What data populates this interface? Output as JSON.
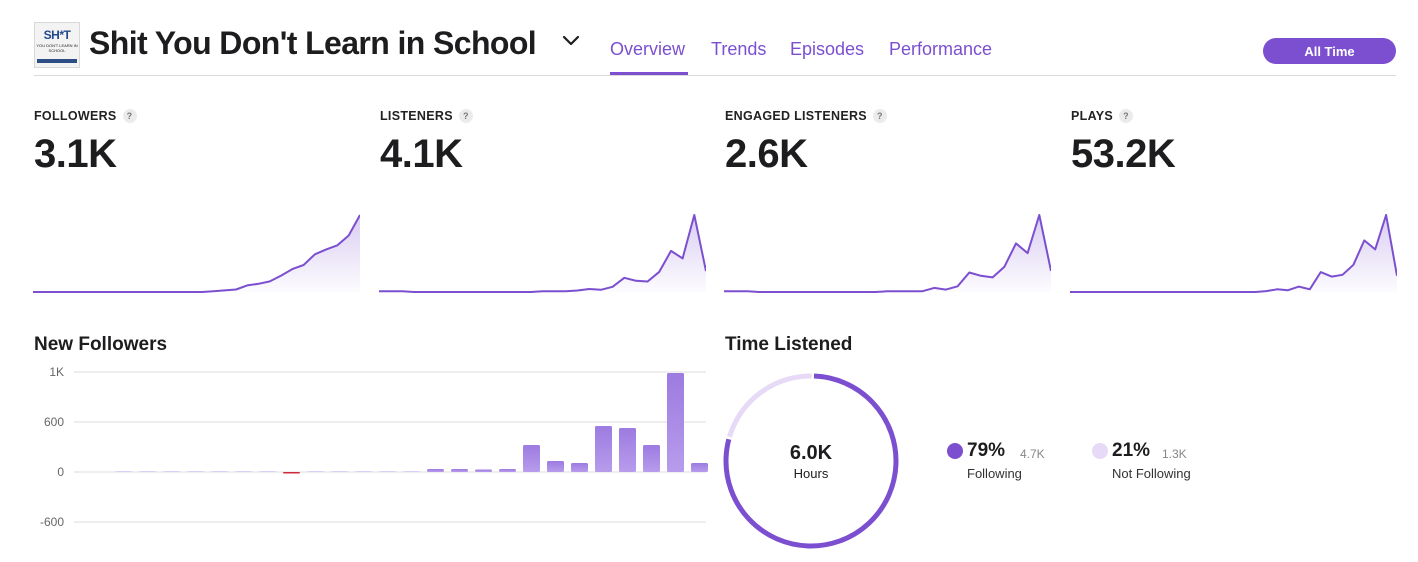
{
  "header": {
    "cover": {
      "line1": "SH*T",
      "line2": "YOU DON'T LEARN IN SCHOOL"
    },
    "title": "Shit You Don't Learn in School",
    "tabs": [
      {
        "label": "Overview",
        "active": true
      },
      {
        "label": "Trends",
        "active": false
      },
      {
        "label": "Episodes",
        "active": false
      },
      {
        "label": "Performance",
        "active": false
      }
    ],
    "range_button": "All Time"
  },
  "stats": [
    {
      "label": "FOLLOWERS",
      "value": "3.1K"
    },
    {
      "label": "LISTENERS",
      "value": "4.1K"
    },
    {
      "label": "ENGAGED LISTENERS",
      "value": "2.6K"
    },
    {
      "label": "PLAYS",
      "value": "53.2K"
    }
  ],
  "help_glyph": "?",
  "sparklines": [
    [
      0,
      0,
      0,
      0,
      0,
      0,
      0,
      0,
      0,
      0,
      0,
      0,
      0,
      0,
      0,
      0,
      1,
      2,
      3,
      8,
      10,
      13,
      20,
      28,
      33,
      46,
      52,
      57,
      69,
      94
    ],
    [
      1,
      1,
      1,
      0,
      0,
      0,
      0,
      0,
      0,
      0,
      0,
      0,
      0,
      0,
      1,
      1,
      1,
      2,
      4,
      3,
      7,
      19,
      15,
      14,
      27,
      55,
      45,
      103,
      28
    ],
    [
      1,
      1,
      1,
      0,
      0,
      0,
      0,
      0,
      0,
      0,
      0,
      0,
      0,
      0,
      1,
      1,
      1,
      1,
      5,
      3,
      7,
      24,
      20,
      18,
      31,
      60,
      48,
      95,
      26
    ],
    [
      0,
      0,
      0,
      0,
      0,
      0,
      0,
      0,
      0,
      0,
      0,
      0,
      0,
      0,
      0,
      0,
      0,
      0,
      1,
      3,
      2,
      6,
      3,
      22,
      17,
      19,
      30,
      57,
      47,
      85,
      18
    ]
  ],
  "new_followers": {
    "title": "New Followers",
    "chart_data": {
      "type": "bar",
      "title": "New Followers",
      "y_ticks": [
        "1K",
        "600",
        "0",
        "-600"
      ],
      "ylim": [
        -600,
        1200
      ],
      "values": [
        5,
        5,
        5,
        5,
        5,
        5,
        5,
        -15,
        5,
        5,
        5,
        5,
        5,
        30,
        30,
        25,
        30,
        270,
        110,
        90,
        460,
        440,
        270,
        990,
        90
      ]
    }
  },
  "time_listened": {
    "title": "Time Listened",
    "total": "6.0K",
    "unit": "Hours",
    "chart_data": {
      "type": "pie",
      "labels": [
        "Following",
        "Not Following"
      ],
      "values": [
        79,
        21
      ]
    },
    "legend": [
      {
        "pct": "79%",
        "count": "4.7K",
        "label": "Following",
        "color": "#7b4fd0"
      },
      {
        "pct": "21%",
        "count": "1.3K",
        "label": "Not Following",
        "color": "#e6daf7"
      }
    ]
  },
  "colors": {
    "accent": "#7b4fd0",
    "light_accent": "#e6daf7",
    "negative": "#d0283c"
  }
}
